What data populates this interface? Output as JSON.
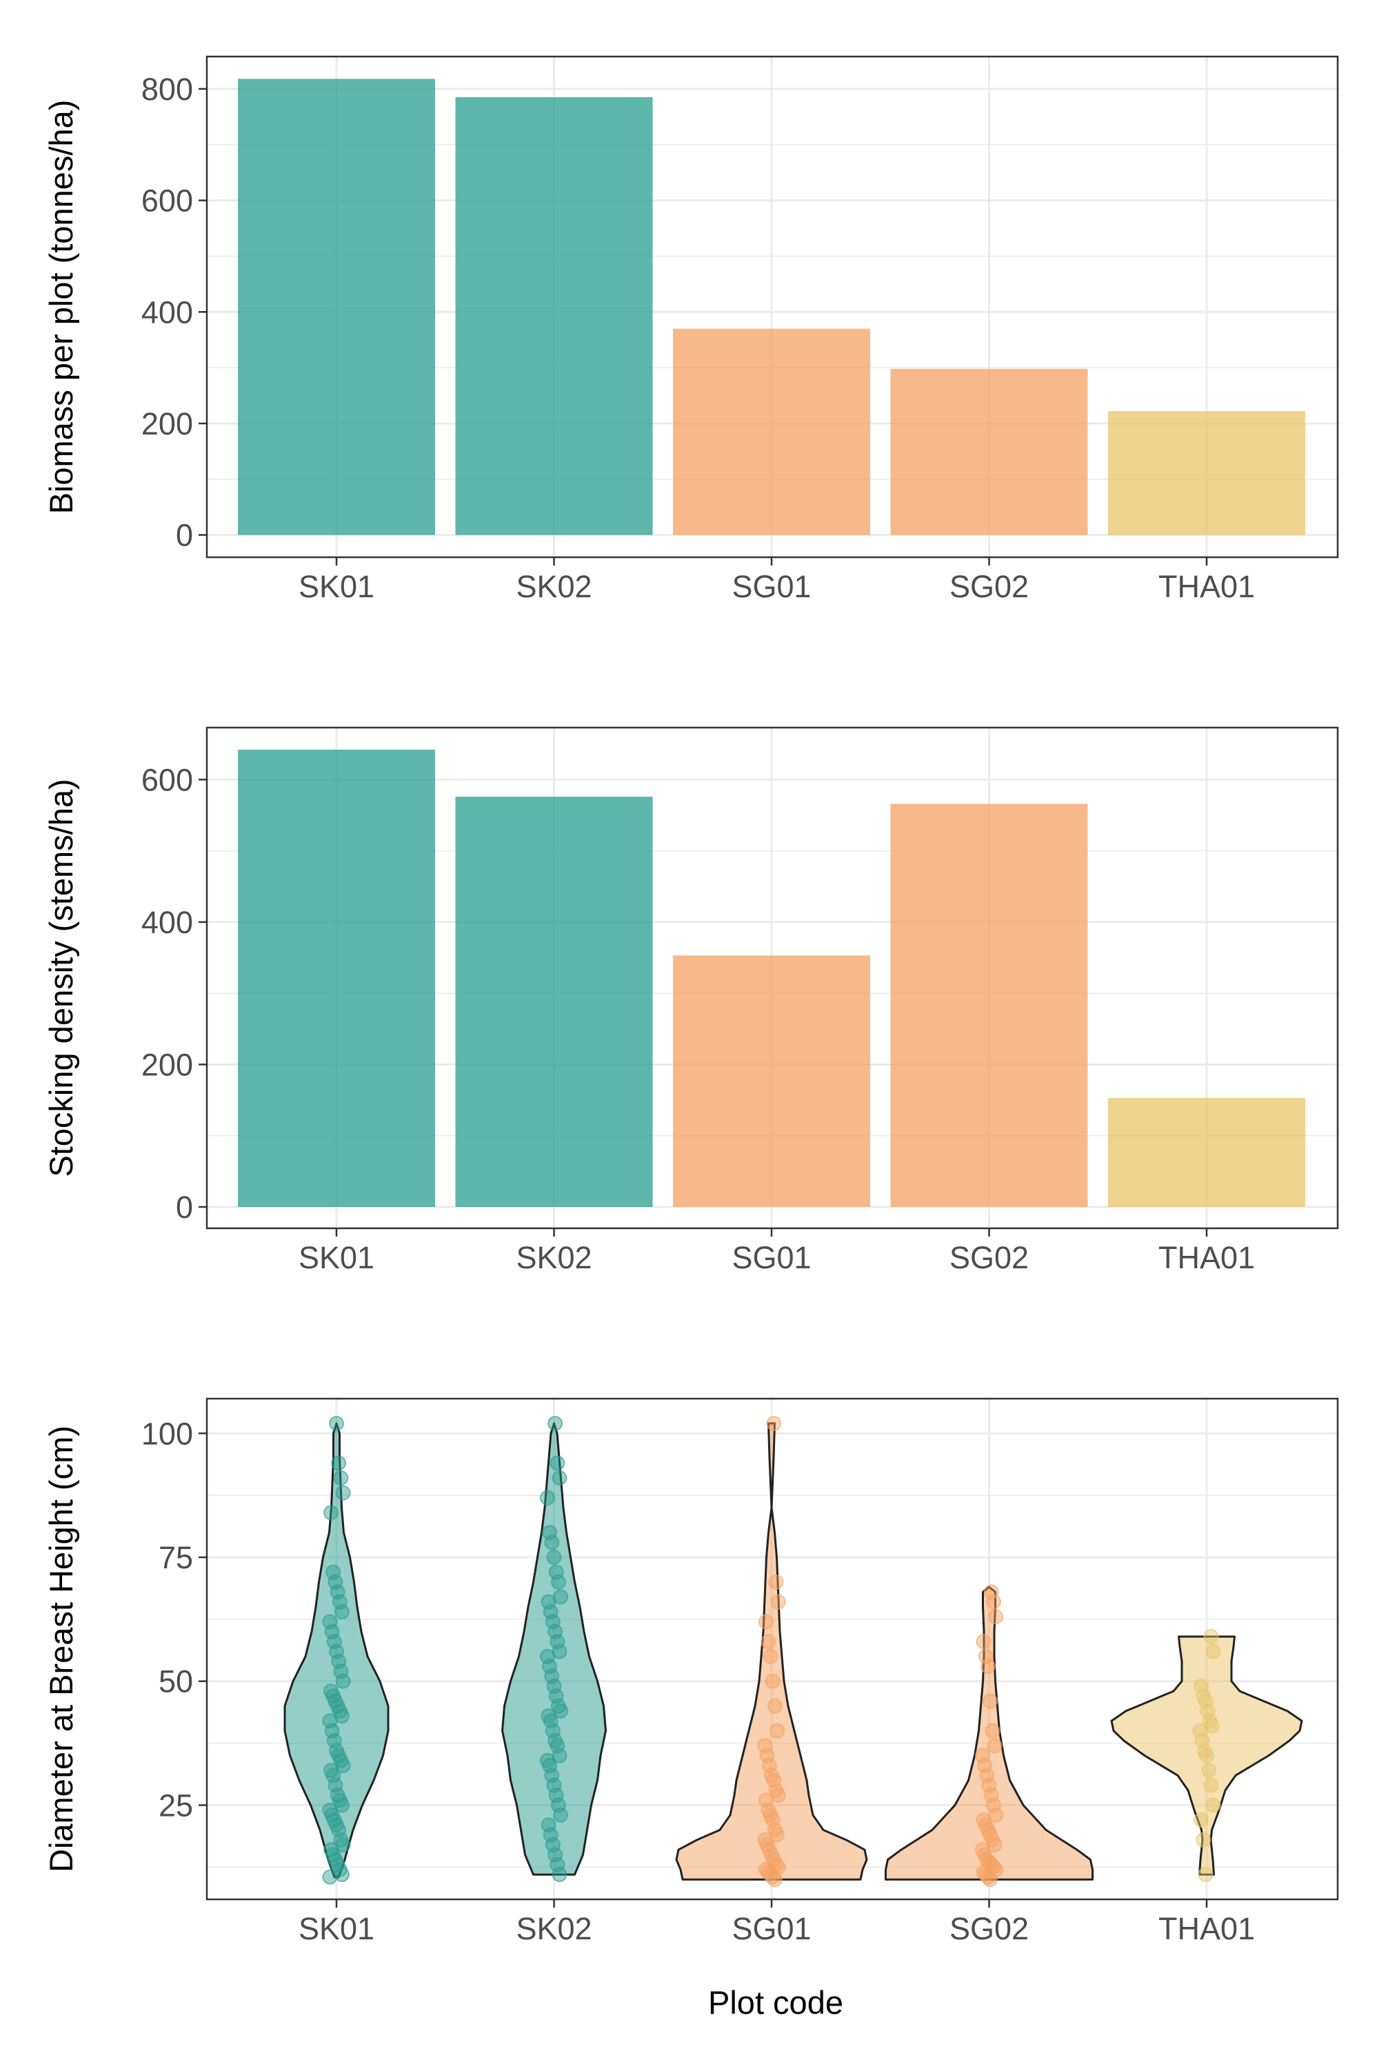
{
  "x_axis_title": "Plot code",
  "colors": {
    "SK01": "#2a9d8f",
    "SK02": "#2a9d8f",
    "SG01": "#f4a261",
    "SG02": "#f4a261",
    "THA01": "#e9c46a",
    "grid": "#ebebeb",
    "border": "#333333",
    "tick_text": "#4d4d4d"
  },
  "chart_data": [
    {
      "type": "bar",
      "categories": [
        "SK01",
        "SK02",
        "SG01",
        "SG02",
        "THA01"
      ],
      "values": [
        818,
        785,
        370,
        298,
        222
      ],
      "ylabel": "Biomass per plot (tonnes/ha)",
      "xlabel": "",
      "ylim": [
        -40,
        858
      ],
      "yticks": [
        0,
        200,
        400,
        600,
        800
      ],
      "grid": true,
      "legend": "none"
    },
    {
      "type": "bar",
      "categories": [
        "SK01",
        "SK02",
        "SG01",
        "SG02",
        "THA01"
      ],
      "values": [
        642,
        576,
        353,
        566,
        153
      ],
      "ylabel": "Stocking density (stems/ha)",
      "xlabel": "",
      "ylim": [
        -30,
        673
      ],
      "yticks": [
        0,
        200,
        400,
        600
      ],
      "grid": true,
      "legend": "none"
    },
    {
      "type": "violin",
      "categories": [
        "SK01",
        "SK02",
        "SG01",
        "SG02",
        "THA01"
      ],
      "ylabel": "Diameter at Breast Height (cm)",
      "xlabel": "Plot code",
      "ylim": [
        6,
        107
      ],
      "yticks": [
        25,
        50,
        75,
        100
      ],
      "grid": true,
      "legend": "none",
      "groups": [
        {
          "name": "SK01",
          "points": [
            10.5,
            11,
            12,
            13,
            14,
            15,
            16,
            17,
            18,
            20,
            21,
            22,
            23,
            24,
            25,
            26,
            27,
            29,
            31,
            32,
            33,
            34,
            35,
            36,
            38,
            40,
            42,
            43,
            44,
            45,
            46,
            47,
            48,
            50,
            52,
            54,
            56,
            58,
            60,
            62,
            64,
            66,
            68,
            70,
            72,
            84,
            88,
            91,
            94,
            102
          ],
          "density": [
            [
              10.5,
              0.02
            ],
            [
              14,
              0.08
            ],
            [
              20,
              0.16
            ],
            [
              25,
              0.25
            ],
            [
              30,
              0.36
            ],
            [
              35,
              0.45
            ],
            [
              40,
              0.5
            ],
            [
              45,
              0.5
            ],
            [
              50,
              0.42
            ],
            [
              55,
              0.3
            ],
            [
              60,
              0.24
            ],
            [
              65,
              0.2
            ],
            [
              70,
              0.17
            ],
            [
              75,
              0.13
            ],
            [
              80,
              0.07
            ],
            [
              85,
              0.05
            ],
            [
              90,
              0.04
            ],
            [
              95,
              0.03
            ],
            [
              100,
              0.03
            ],
            [
              102,
              0.0
            ]
          ]
        },
        {
          "name": "SK02",
          "points": [
            11,
            13,
            15,
            17,
            19,
            21,
            23,
            25,
            27,
            29,
            31,
            33,
            34,
            35,
            37,
            38,
            40,
            42,
            43,
            44,
            45,
            47,
            49,
            51,
            53,
            55,
            56,
            58,
            60,
            62,
            64,
            66,
            67,
            70,
            72,
            75,
            78,
            80,
            87,
            91,
            94,
            102
          ],
          "density": [
            [
              11,
              0.2
            ],
            [
              15,
              0.28
            ],
            [
              20,
              0.32
            ],
            [
              25,
              0.36
            ],
            [
              30,
              0.42
            ],
            [
              35,
              0.45
            ],
            [
              40,
              0.5
            ],
            [
              45,
              0.48
            ],
            [
              50,
              0.42
            ],
            [
              55,
              0.34
            ],
            [
              60,
              0.29
            ],
            [
              65,
              0.25
            ],
            [
              70,
              0.2
            ],
            [
              75,
              0.16
            ],
            [
              80,
              0.12
            ],
            [
              85,
              0.09
            ],
            [
              90,
              0.07
            ],
            [
              95,
              0.05
            ],
            [
              100,
              0.03
            ],
            [
              102,
              0.0
            ]
          ]
        },
        {
          "name": "SG01",
          "points": [
            10,
            10.5,
            11,
            11.5,
            12,
            12.5,
            13,
            14,
            15,
            16,
            17,
            18,
            19,
            20,
            22,
            23,
            24,
            26,
            27,
            28,
            30,
            31,
            33,
            35,
            37,
            40,
            45,
            50,
            55,
            58,
            62,
            66,
            70,
            102
          ],
          "density": [
            [
              10,
              0.86
            ],
            [
              12,
              0.88
            ],
            [
              14,
              0.92
            ],
            [
              16,
              0.9
            ],
            [
              18,
              0.72
            ],
            [
              20,
              0.5
            ],
            [
              23,
              0.4
            ],
            [
              27,
              0.36
            ],
            [
              30,
              0.34
            ],
            [
              35,
              0.28
            ],
            [
              40,
              0.22
            ],
            [
              45,
              0.16
            ],
            [
              50,
              0.12
            ],
            [
              55,
              0.1
            ],
            [
              60,
              0.08
            ],
            [
              65,
              0.07
            ],
            [
              70,
              0.06
            ],
            [
              75,
              0.05
            ],
            [
              80,
              0.03
            ],
            [
              85,
              0.0
            ],
            [
              95,
              0.02
            ],
            [
              102,
              0.03
            ]
          ]
        },
        {
          "name": "SG02",
          "points": [
            10,
            10.5,
            11,
            11.5,
            12,
            12.5,
            13,
            13.5,
            14,
            15,
            16,
            17,
            18,
            19,
            20,
            21,
            22,
            23,
            25,
            27,
            29,
            31,
            33,
            35,
            37,
            40,
            46,
            53,
            55,
            58,
            63,
            66,
            68
          ],
          "density": [
            [
              10,
              1.0
            ],
            [
              12,
              1.0
            ],
            [
              14,
              0.98
            ],
            [
              16,
              0.85
            ],
            [
              20,
              0.55
            ],
            [
              25,
              0.33
            ],
            [
              30,
              0.2
            ],
            [
              35,
              0.14
            ],
            [
              40,
              0.1
            ],
            [
              45,
              0.08
            ],
            [
              50,
              0.06
            ],
            [
              55,
              0.05
            ],
            [
              60,
              0.05
            ],
            [
              65,
              0.06
            ],
            [
              68,
              0.06
            ],
            [
              69,
              0.0
            ]
          ]
        },
        {
          "name": "THA01",
          "points": [
            11,
            18,
            22,
            25,
            29,
            32,
            35,
            36,
            38,
            40,
            41,
            42,
            44,
            46,
            47,
            49,
            56,
            59
          ],
          "density": [
            [
              11,
              0.07
            ],
            [
              14,
              0.06
            ],
            [
              18,
              0.04
            ],
            [
              20,
              0.05
            ],
            [
              24,
              0.12
            ],
            [
              28,
              0.18
            ],
            [
              31,
              0.28
            ],
            [
              35,
              0.6
            ],
            [
              38,
              0.8
            ],
            [
              40,
              0.9
            ],
            [
              42,
              0.92
            ],
            [
              44,
              0.78
            ],
            [
              46,
              0.55
            ],
            [
              48,
              0.32
            ],
            [
              50,
              0.24
            ],
            [
              54,
              0.24
            ],
            [
              57,
              0.26
            ],
            [
              59,
              0.27
            ]
          ]
        }
      ]
    }
  ]
}
